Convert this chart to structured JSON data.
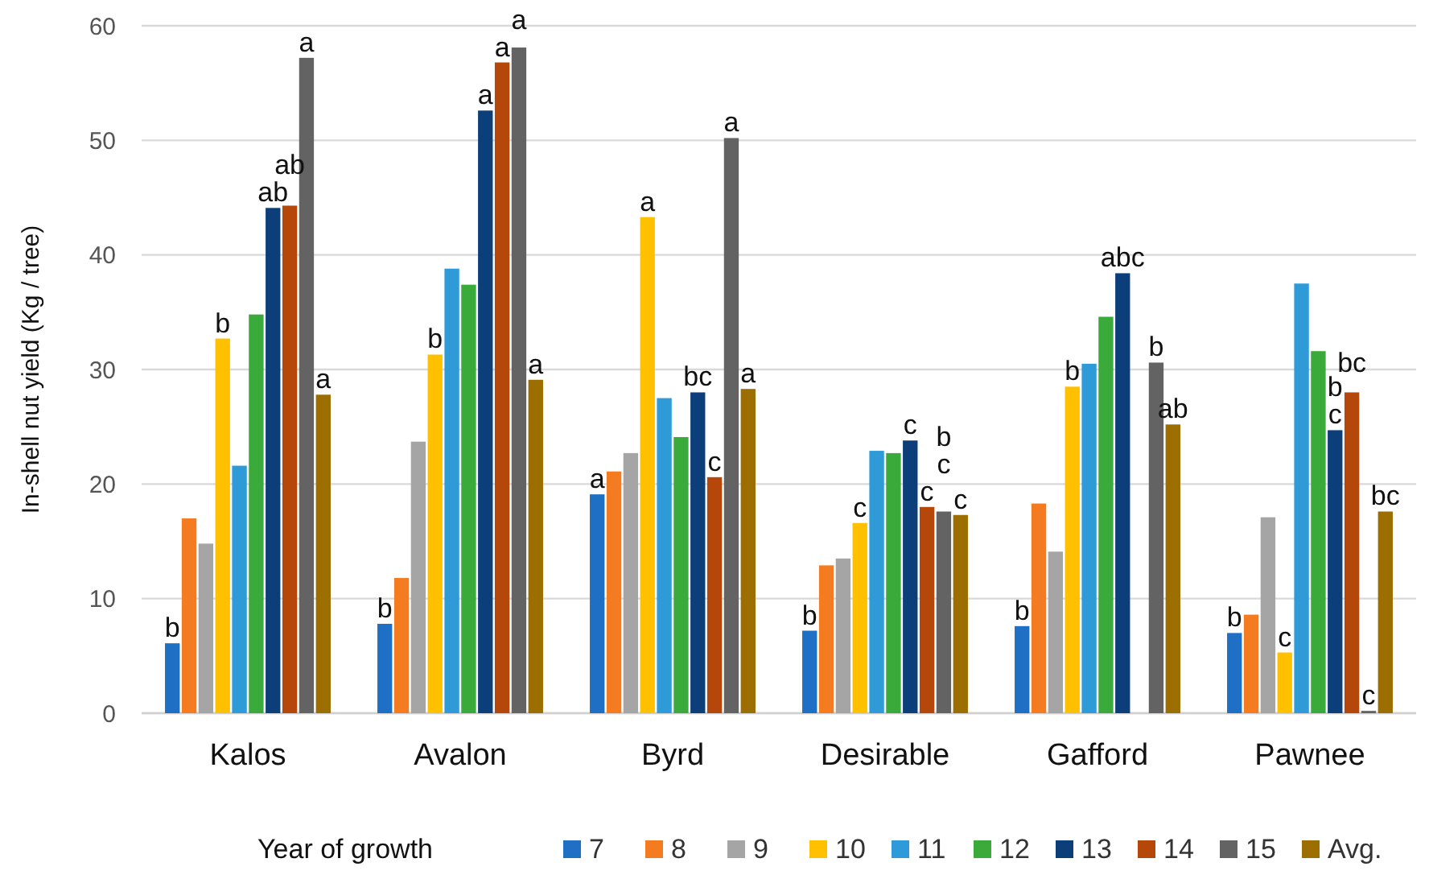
{
  "chart_data": {
    "type": "bar",
    "ylabel": "In-shell nut yield (Kg / tree)",
    "legend_title": "Year of growth",
    "legend": "bottom",
    "grid": "y",
    "categories": [
      "Kalos",
      "Avalon",
      "Byrd",
      "Desirable",
      "Gafford",
      "Pawnee"
    ],
    "ylim": [
      0,
      60
    ],
    "yticks": [
      0,
      10,
      20,
      30,
      40,
      50,
      60
    ],
    "series": [
      {
        "name": "7",
        "color": "#1f6fc5",
        "values": [
          6.1,
          7.8,
          19.1,
          7.2,
          7.6,
          7.0
        ],
        "value_labels": [
          "b",
          "b",
          "a",
          "b",
          "b",
          "b"
        ]
      },
      {
        "name": "8",
        "color": "#f47b20",
        "values": [
          17.0,
          11.8,
          21.1,
          12.9,
          18.3,
          8.6
        ],
        "value_labels": [
          null,
          null,
          null,
          null,
          null,
          null
        ]
      },
      {
        "name": "9",
        "color": "#a5a5a5",
        "values": [
          14.8,
          23.7,
          22.7,
          13.5,
          14.1,
          17.1
        ],
        "value_labels": [
          null,
          null,
          null,
          null,
          null,
          null
        ]
      },
      {
        "name": "10",
        "color": "#ffc000",
        "values": [
          32.7,
          31.3,
          43.3,
          16.6,
          28.5,
          5.3
        ],
        "value_labels": [
          "b",
          "b",
          "a",
          "c",
          "b",
          "c"
        ]
      },
      {
        "name": "11",
        "color": "#2e9ad8",
        "values": [
          21.6,
          38.8,
          27.5,
          22.9,
          30.5,
          37.5
        ],
        "value_labels": [
          null,
          null,
          null,
          null,
          null,
          null
        ]
      },
      {
        "name": "12",
        "color": "#3aab3a",
        "values": [
          34.8,
          37.4,
          24.1,
          22.7,
          34.6,
          31.6
        ],
        "value_labels": [
          null,
          null,
          null,
          null,
          null,
          null
        ]
      },
      {
        "name": "13",
        "color": "#0c3f7a",
        "values": [
          44.1,
          52.6,
          28.0,
          23.8,
          38.4,
          24.7
        ],
        "value_labels": [
          "ab",
          "a",
          "bc",
          "c",
          "abc",
          "b\nc"
        ]
      },
      {
        "name": "14",
        "color": "#b5470a",
        "values": [
          44.3,
          56.8,
          20.6,
          18.0,
          null,
          28.0
        ],
        "value_labels": [
          "ab",
          "a",
          "c",
          "c",
          null,
          "bc"
        ]
      },
      {
        "name": "15",
        "color": "#636363",
        "values": [
          57.2,
          58.1,
          50.2,
          17.6,
          30.6,
          0.2
        ],
        "value_labels": [
          "a",
          "a",
          "a",
          "b\nc",
          "b",
          "c"
        ]
      },
      {
        "name": "Avg.",
        "color": "#9c6e00",
        "values": [
          27.8,
          29.1,
          28.3,
          17.3,
          25.2,
          17.6
        ],
        "value_labels": [
          "a",
          "a",
          "a",
          "c",
          "ab",
          "bc"
        ]
      }
    ]
  }
}
